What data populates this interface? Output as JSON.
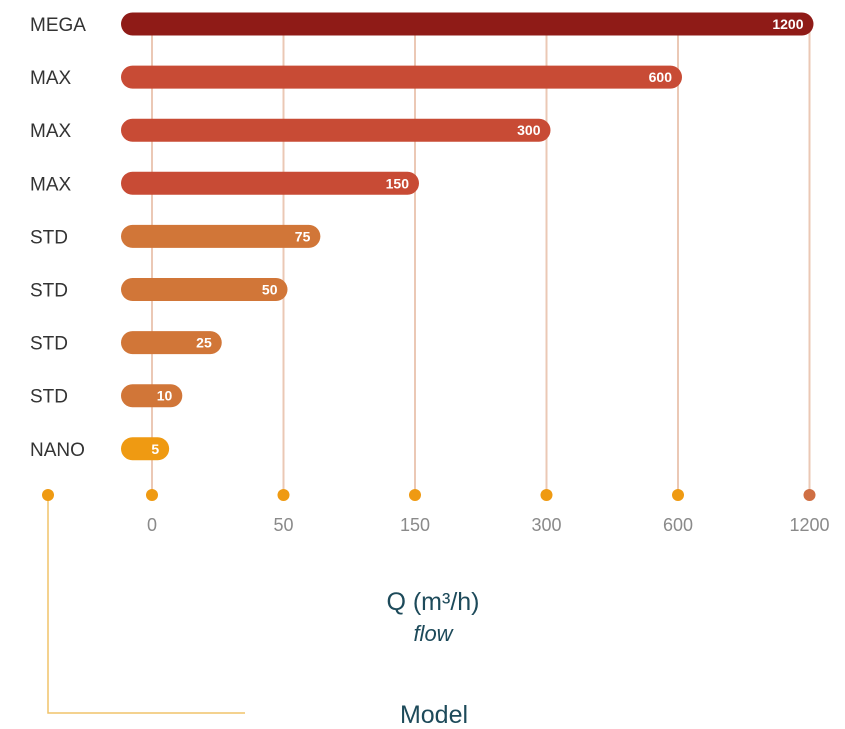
{
  "chart_data": {
    "type": "bar",
    "orientation": "horizontal",
    "categories": [
      "MEGA",
      "MAX",
      "MAX",
      "MAX",
      "STD",
      "STD",
      "STD",
      "STD",
      "NANO"
    ],
    "values": [
      1200,
      600,
      300,
      150,
      75,
      50,
      25,
      10,
      5
    ],
    "value_labels": [
      "1200",
      "600",
      "300",
      "150",
      "75",
      "50",
      "25",
      "10",
      "5"
    ],
    "x_ticks": [
      0,
      50,
      150,
      300,
      600,
      1200
    ],
    "x_tick_labels": [
      "0",
      "50",
      "150",
      "300",
      "600",
      "1200"
    ],
    "xlabel": "Q (m³/h)",
    "xlabel_sub": "flow",
    "ylabel": "Model",
    "grid": "vertical",
    "colors": {
      "mega": "#8f1b17",
      "max": "#c84b35",
      "std": "#d17638",
      "nano": "#ef9a12",
      "gridline": "#ebc8b5",
      "tick_dot": "#ef9a12",
      "tick_dot_last": "#cf6f43",
      "axis_bracket": "#f0c36a",
      "axis_text": "#1d4a5a"
    }
  }
}
